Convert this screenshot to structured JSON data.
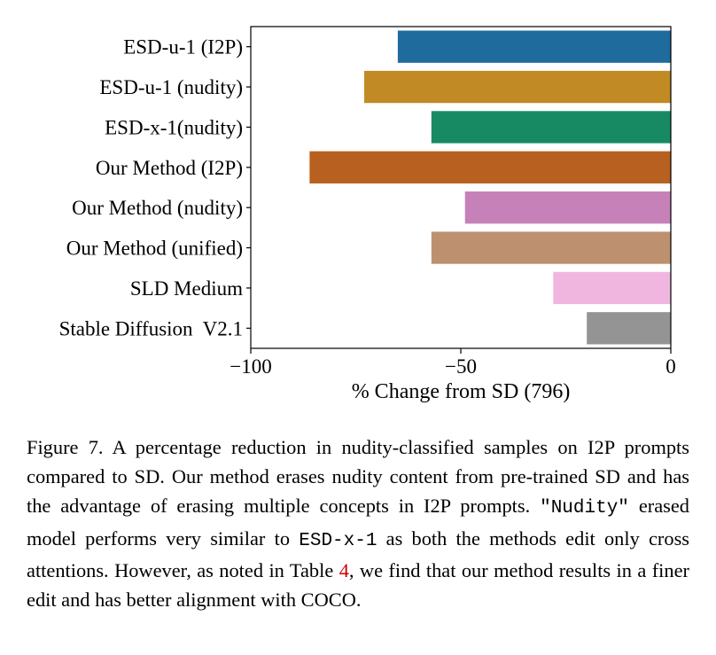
{
  "chart_data": {
    "type": "bar",
    "orientation": "horizontal",
    "categories": [
      "ESD-u-1 (I2P)",
      "ESD-u-1 (nudity)",
      "ESD-x-1(nudity)",
      "Our Method (I2P)",
      "Our Method (nudity)",
      "Our Method (unified)",
      "SLD Medium",
      "Stable Diffusion  V2.1"
    ],
    "values": [
      -65,
      -73,
      -57,
      -86,
      -49,
      -57,
      -28,
      -20
    ],
    "colors": [
      "#1f6b9e",
      "#c28a25",
      "#178a64",
      "#b8601f",
      "#c681b8",
      "#bd9070",
      "#f1b6df",
      "#949494"
    ],
    "xlabel": "% Change from SD (796)",
    "xlim": [
      -100,
      0
    ],
    "xticks": [
      -100,
      -50,
      0
    ],
    "xtick_labels": [
      "−100",
      "−50",
      "0"
    ],
    "grid": false,
    "legend": "none"
  },
  "caption": {
    "text1": "Figure 7. A percentage reduction in nudity-classified samples on I2P prompts compared to SD. Our method erases nudity content from pre-trained SD and has the advantage of erasing multiple concepts in I2P prompts. ",
    "mono1": "\"Nudity\"",
    "text2": " erased model performs very similar to ",
    "mono2": "ESD-x-1",
    "text3": " as both the methods edit only cross attentions. However, as noted in Table ",
    "ref": "4",
    "text4": ", we find that our method results in a finer edit and has better alignment with COCO."
  }
}
